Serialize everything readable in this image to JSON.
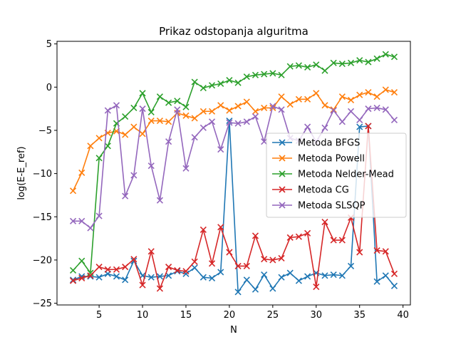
{
  "chart_data": {
    "type": "line",
    "title": "Prikaz odstopanja alguritma",
    "xlabel": "N",
    "ylabel": "log(E-E_ref)",
    "xlim": [
      0.15,
      40.85
    ],
    "ylim": [
      -25.2,
      5.3
    ],
    "xticks": [
      5,
      10,
      15,
      20,
      25,
      30,
      35,
      40
    ],
    "yticks": [
      -25,
      -20,
      -15,
      -10,
      -5,
      0,
      5
    ],
    "grid": false,
    "legend": "center-right",
    "x": [
      2,
      3,
      4,
      5,
      6,
      7,
      8,
      9,
      10,
      11,
      12,
      13,
      14,
      15,
      16,
      17,
      18,
      19,
      20,
      21,
      22,
      23,
      24,
      25,
      26,
      27,
      28,
      29,
      30,
      31,
      32,
      33,
      34,
      35,
      36,
      37,
      38,
      39
    ],
    "series": [
      {
        "name": "Metoda BFGS",
        "color": "#1f77b4",
        "values": [
          -22.3,
          -21.9,
          -21.9,
          -22.0,
          -21.6,
          -21.9,
          -22.3,
          -20.1,
          -21.8,
          -22.0,
          -21.9,
          -21.8,
          -21.3,
          -21.6,
          -20.9,
          -22.0,
          -22.1,
          -21.4,
          -3.9,
          -23.7,
          -22.3,
          -23.4,
          -21.7,
          -23.3,
          -22.0,
          -21.5,
          -22.4,
          -21.9,
          -21.5,
          -21.8,
          -21.7,
          -21.8,
          -20.7,
          -4.6,
          -4.5,
          -22.5,
          -21.8,
          -23.0
        ]
      },
      {
        "name": "Metoda Powell",
        "color": "#ff7f0e",
        "values": [
          -12.0,
          -9.9,
          -6.8,
          -5.9,
          -5.3,
          -5.1,
          -5.5,
          -4.6,
          -5.4,
          -3.9,
          -3.9,
          -4.0,
          -3.0,
          -3.3,
          -3.6,
          -2.8,
          -2.8,
          -2.1,
          -2.7,
          -2.2,
          -1.7,
          -2.8,
          -2.4,
          -2.4,
          -1.1,
          -2.0,
          -1.4,
          -1.4,
          -0.7,
          -2.1,
          -2.6,
          -1.1,
          -1.5,
          -0.9,
          -0.6,
          -1.1,
          -0.3,
          -0.6
        ]
      },
      {
        "name": "Metoda Nelder-Mead",
        "color": "#2ca02c",
        "values": [
          -21.2,
          -20.1,
          -21.5,
          -8.2,
          -6.8,
          -4.2,
          -3.4,
          -2.4,
          -0.7,
          -2.9,
          -1.1,
          -1.8,
          -1.6,
          -2.3,
          0.6,
          -0.1,
          0.2,
          0.4,
          0.8,
          0.5,
          1.2,
          1.4,
          1.5,
          1.6,
          1.4,
          2.4,
          2.5,
          2.3,
          2.6,
          1.9,
          2.8,
          2.7,
          2.8,
          3.1,
          2.9,
          3.3,
          3.8,
          3.5
        ]
      },
      {
        "name": "Metoda CG",
        "color": "#d62728",
        "values": [
          -22.4,
          -22.1,
          -21.8,
          -20.8,
          -21.1,
          -21.1,
          -20.8,
          -19.9,
          -22.9,
          -19.0,
          -23.3,
          -20.8,
          -21.2,
          -21.3,
          -20.2,
          -16.5,
          -20.4,
          -16.2,
          -19.1,
          -20.7,
          -20.7,
          -17.2,
          -19.9,
          -20.0,
          -19.8,
          -17.4,
          -17.3,
          -16.9,
          -23.1,
          -15.6,
          -17.7,
          -17.7,
          -15.1,
          -19.1,
          -4.5,
          -18.9,
          -19.0,
          -21.6
        ]
      },
      {
        "name": "Metoda SLSQP",
        "color": "#9467bd",
        "values": [
          -15.5,
          -15.5,
          -16.3,
          -14.9,
          -2.7,
          -2.1,
          -12.6,
          -10.2,
          -2.5,
          -9.1,
          -13.1,
          -6.3,
          -2.6,
          -9.4,
          -5.8,
          -4.7,
          -4.0,
          -7.2,
          -4.1,
          -4.2,
          -4.0,
          -3.4,
          -6.3,
          -2.2,
          -2.6,
          -5.9,
          -6.2,
          -4.6,
          -6.3,
          -4.7,
          -2.7,
          -4.0,
          -2.8,
          -3.8,
          -2.5,
          -2.4,
          -2.6,
          -3.8
        ]
      }
    ]
  }
}
